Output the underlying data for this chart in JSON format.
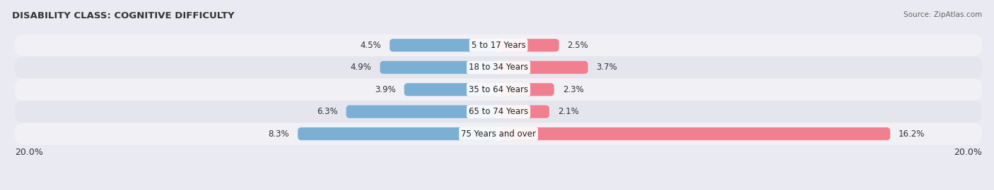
{
  "title": "DISABILITY CLASS: COGNITIVE DIFFICULTY",
  "source": "Source: ZipAtlas.com",
  "categories": [
    "5 to 17 Years",
    "18 to 34 Years",
    "35 to 64 Years",
    "65 to 74 Years",
    "75 Years and over"
  ],
  "male_values": [
    4.5,
    4.9,
    3.9,
    6.3,
    8.3
  ],
  "female_values": [
    2.5,
    3.7,
    2.3,
    2.1,
    16.2
  ],
  "male_color": "#7BAFD4",
  "female_color": "#F08090",
  "row_bg_light": "#F0F0F5",
  "row_bg_dark": "#E5E5EE",
  "xlim": 20.0,
  "bar_height": 0.58,
  "title_fontsize": 9.5,
  "label_fontsize": 8.5,
  "tick_fontsize": 9,
  "source_fontsize": 7.5,
  "fig_bg": "#EAEAF2"
}
